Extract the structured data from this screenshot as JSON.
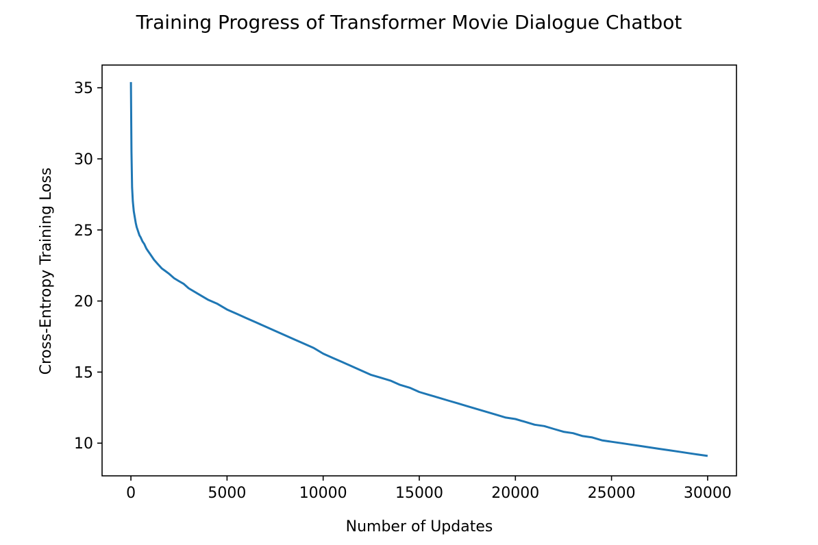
{
  "chart_data": {
    "type": "line",
    "title": "Training Progress of Transformer Movie Dialogue Chatbot",
    "xlabel": "Number of Updates",
    "ylabel": "Cross-Entropy Training Loss",
    "xlim": [
      -1500,
      31500
    ],
    "ylim": [
      7.7,
      36.6
    ],
    "xticks": [
      0,
      5000,
      10000,
      15000,
      20000,
      25000,
      30000
    ],
    "yticks": [
      10,
      15,
      20,
      25,
      30,
      35
    ],
    "grid": false,
    "line_color": "#1f77b4",
    "series": [
      {
        "x": [
          0,
          30,
          60,
          100,
          150,
          200,
          250,
          300,
          350,
          400,
          450,
          500,
          600,
          700,
          800,
          900,
          1000,
          1200,
          1400,
          1600,
          1800,
          2000,
          2250,
          2500,
          2750,
          3000,
          3500,
          4000,
          4500,
          5000,
          5500,
          6000,
          6500,
          7000,
          7500,
          8000,
          8500,
          9000,
          9500,
          10000,
          10500,
          11000,
          11500,
          12000,
          12500,
          13000,
          13500,
          14000,
          14500,
          15000,
          15500,
          16000,
          16500,
          17000,
          17500,
          18000,
          18500,
          19000,
          19500,
          20000,
          20500,
          21000,
          21500,
          22000,
          22500,
          23000,
          23500,
          24000,
          24500,
          25000,
          25500,
          26000,
          26500,
          27000,
          27500,
          28000,
          28500,
          29000,
          29500,
          30000
        ],
        "y": [
          35.4,
          30.5,
          28.0,
          27.0,
          26.3,
          25.9,
          25.5,
          25.2,
          25.0,
          24.8,
          24.6,
          24.5,
          24.2,
          24.0,
          23.7,
          23.5,
          23.3,
          22.9,
          22.6,
          22.3,
          22.1,
          21.9,
          21.6,
          21.4,
          21.2,
          20.9,
          20.5,
          20.1,
          19.8,
          19.4,
          19.1,
          18.8,
          18.5,
          18.2,
          17.9,
          17.6,
          17.3,
          17.0,
          16.7,
          16.3,
          16.0,
          15.7,
          15.4,
          15.1,
          14.8,
          14.6,
          14.4,
          14.1,
          13.9,
          13.6,
          13.4,
          13.2,
          13.0,
          12.8,
          12.6,
          12.4,
          12.2,
          12.0,
          11.8,
          11.7,
          11.5,
          11.3,
          11.2,
          11.0,
          10.8,
          10.7,
          10.5,
          10.4,
          10.2,
          10.1,
          10.0,
          9.9,
          9.8,
          9.7,
          9.6,
          9.5,
          9.4,
          9.3,
          9.2,
          9.1
        ]
      }
    ]
  }
}
